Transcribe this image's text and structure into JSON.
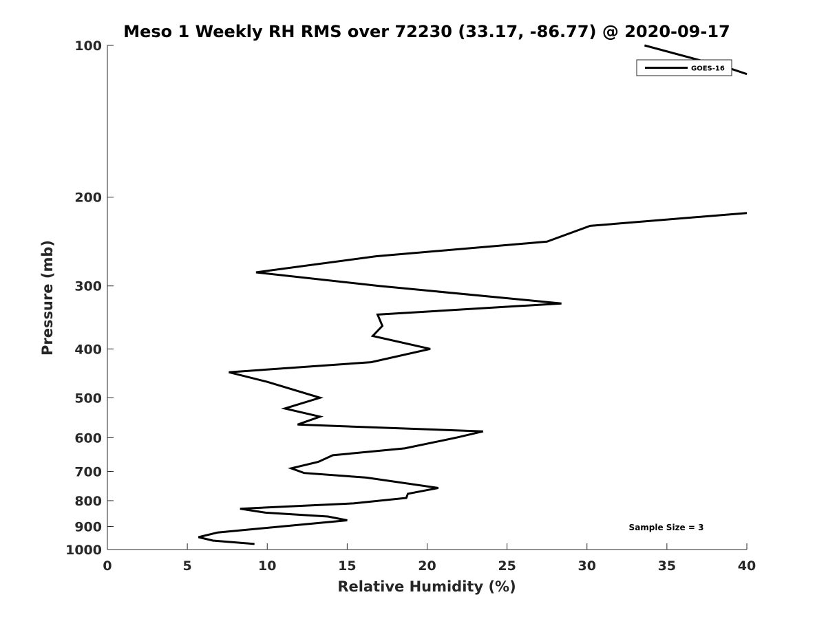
{
  "chart_data": {
    "type": "line",
    "title": "Meso 1 Weekly RH RMS over 72230 (33.17, -86.77) @ 2020-09-17",
    "xlabel": "Relative Humidity (%)",
    "ylabel": "Pressure (mb)",
    "xlim": [
      0,
      40
    ],
    "ylim": [
      1000,
      100
    ],
    "y_scale": "log",
    "grid": false,
    "legend_position": "top-right",
    "x_ticks": [
      0,
      5,
      10,
      15,
      20,
      25,
      30,
      35,
      40
    ],
    "y_ticks": [
      100,
      200,
      300,
      400,
      500,
      600,
      700,
      800,
      900,
      1000
    ],
    "annotation": "Sample Size = 3",
    "series": [
      {
        "name": "GOES-16",
        "color": "#000000",
        "points": [
          {
            "rh": 9.2,
            "p": 975
          },
          {
            "rh": 6.6,
            "p": 960
          },
          {
            "rh": 5.7,
            "p": 945
          },
          {
            "rh": 6.9,
            "p": 925
          },
          {
            "rh": 15.0,
            "p": 875
          },
          {
            "rh": 13.8,
            "p": 860
          },
          {
            "rh": 9.9,
            "p": 845
          },
          {
            "rh": 8.3,
            "p": 830
          },
          {
            "rh": 15.4,
            "p": 810
          },
          {
            "rh": 18.7,
            "p": 790
          },
          {
            "rh": 18.8,
            "p": 775
          },
          {
            "rh": 20.7,
            "p": 755
          },
          {
            "rh": 16.2,
            "p": 720
          },
          {
            "rh": 12.3,
            "p": 705
          },
          {
            "rh": 11.5,
            "p": 690
          },
          {
            "rh": 13.2,
            "p": 670
          },
          {
            "rh": 14.1,
            "p": 650
          },
          {
            "rh": 18.6,
            "p": 630
          },
          {
            "rh": 21.8,
            "p": 600
          },
          {
            "rh": 23.5,
            "p": 583
          },
          {
            "rh": 11.9,
            "p": 565
          },
          {
            "rh": 13.3,
            "p": 545
          },
          {
            "rh": 11.1,
            "p": 525
          },
          {
            "rh": 13.3,
            "p": 500
          },
          {
            "rh": 10.0,
            "p": 465
          },
          {
            "rh": 7.6,
            "p": 445
          },
          {
            "rh": 16.5,
            "p": 425
          },
          {
            "rh": 20.2,
            "p": 400
          },
          {
            "rh": 16.6,
            "p": 377
          },
          {
            "rh": 17.2,
            "p": 360
          },
          {
            "rh": 16.9,
            "p": 342
          },
          {
            "rh": 28.4,
            "p": 325
          },
          {
            "rh": 17.0,
            "p": 300
          },
          {
            "rh": 9.3,
            "p": 282
          },
          {
            "rh": 16.8,
            "p": 262
          },
          {
            "rh": 27.5,
            "p": 245
          },
          {
            "rh": 30.2,
            "p": 228
          },
          {
            "rh": 40.0,
            "p": 215
          }
        ]
      },
      {
        "name": "GOES-16",
        "color": "#000000",
        "points": [
          {
            "rh": 33.6,
            "p": 100
          },
          {
            "rh": 38.9,
            "p": 111
          },
          {
            "rh": 40.0,
            "p": 114
          }
        ]
      }
    ]
  }
}
